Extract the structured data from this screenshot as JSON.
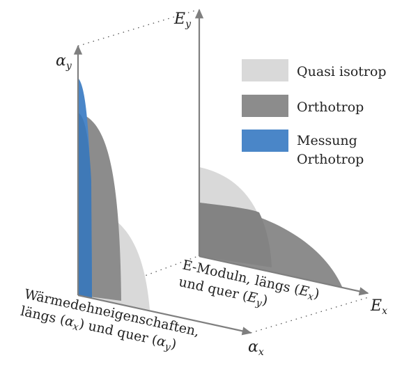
{
  "axes": {
    "alpha_y": {
      "sym": "α",
      "sub": "y"
    },
    "alpha_x": {
      "sym": "α",
      "sub": "x"
    },
    "E_y": {
      "sym": "E",
      "sub": "y"
    },
    "E_x": {
      "sym": "E",
      "sub": "x"
    }
  },
  "legend": {
    "items": [
      {
        "label_lines": [
          "Quasi isotrop"
        ],
        "color": "#d9d9d9"
      },
      {
        "label_lines": [
          "Orthotrop"
        ],
        "color": "#8c8c8c"
      },
      {
        "label_lines": [
          "Messung",
          "Orthotrop"
        ],
        "color": "#4a86c8"
      }
    ]
  },
  "labels": {
    "e_modul": {
      "line1_prefix": "E-Moduln, längs (",
      "line1_sym": "E",
      "line1_sub": "x",
      "line1_suffix": ")",
      "line2_prefix": "und quer (",
      "line2_sym": "E",
      "line2_sub": "y",
      "line2_suffix": ")"
    },
    "waerme": {
      "line1": "Wärmedehneigenschaften,",
      "line2_prefix": "längs (",
      "line2_sym1": "α",
      "line2_sub1": "x",
      "line2_mid": ") und quer (",
      "line2_sym2": "α",
      "line2_sub2": "y",
      "line2_suffix": ")"
    }
  },
  "colors": {
    "quasi_isotrop": "#d9d9d9",
    "orthotrop": "#8c8c8c",
    "messung": "#4a86c8",
    "axis": "#7f7f7f"
  }
}
